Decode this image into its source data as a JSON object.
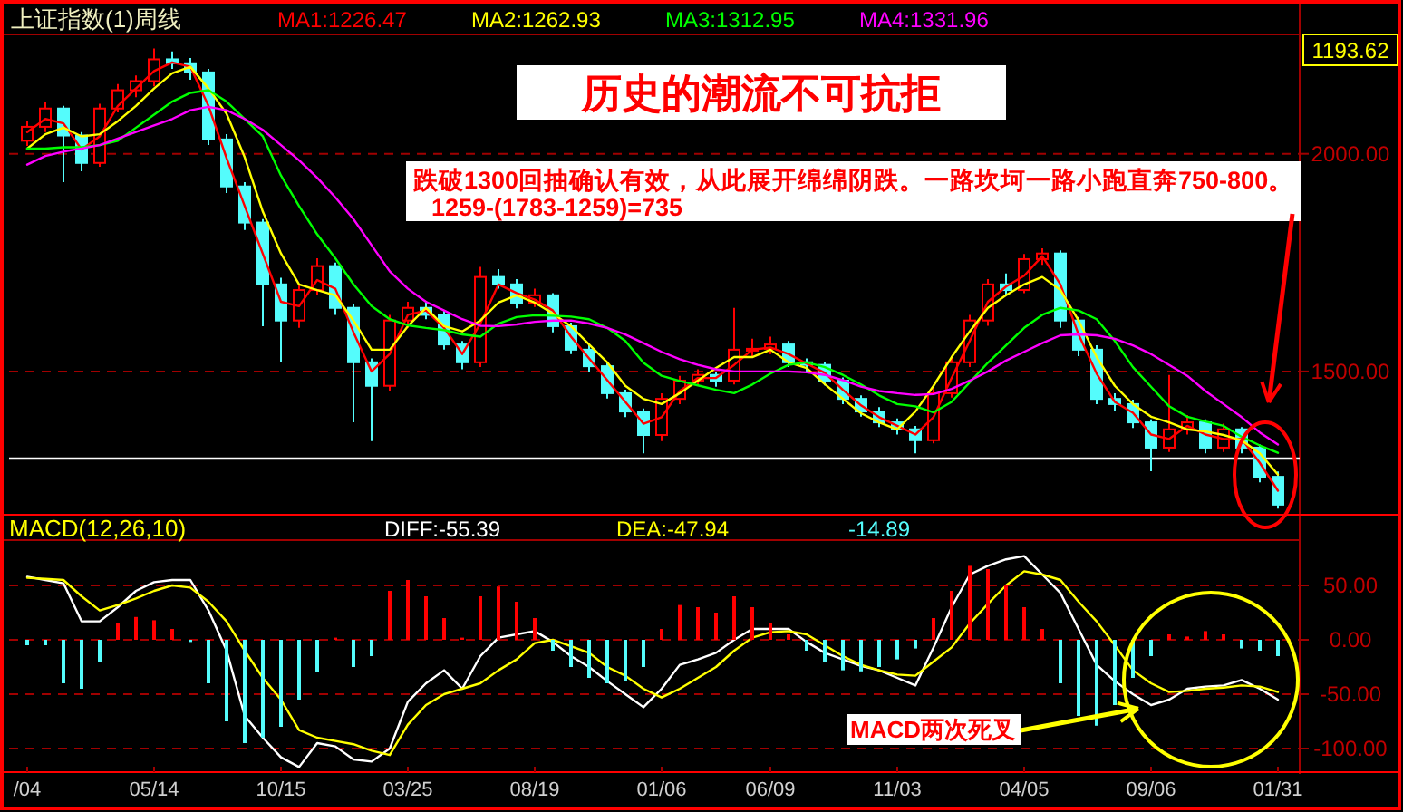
{
  "chart_data": [
    {
      "type": "candlestick",
      "title": "上证指数(1)周线",
      "categories": [
        null,
        null,
        null,
        null,
        null,
        null,
        null,
        null,
        null,
        null,
        null,
        null,
        null,
        null,
        null,
        null,
        null,
        null,
        null,
        null,
        null,
        null,
        null,
        null,
        null,
        null,
        null,
        null,
        null,
        null,
        null,
        null,
        null,
        null,
        null,
        null,
        null,
        null,
        null,
        null,
        null,
        null,
        null,
        null,
        null,
        null,
        null,
        null,
        null,
        null,
        null,
        null,
        null,
        null,
        null,
        null,
        null,
        null,
        null,
        null,
        null,
        null,
        null,
        null,
        null,
        null,
        null,
        null,
        null,
        null
      ],
      "ohlc": [
        [
          2030,
          2075,
          2018,
          2062
        ],
        [
          2062,
          2118,
          2050,
          2104
        ],
        [
          2104,
          2110,
          1935,
          2042
        ],
        [
          2042,
          2050,
          1960,
          1979
        ],
        [
          1979,
          2115,
          1970,
          2104
        ],
        [
          2104,
          2160,
          2095,
          2146
        ],
        [
          2146,
          2180,
          2130,
          2167
        ],
        [
          2167,
          2242,
          2155,
          2217
        ],
        [
          2217,
          2235,
          2195,
          2208
        ],
        [
          2208,
          2220,
          2170,
          2187
        ],
        [
          2187,
          2195,
          2020,
          2033
        ],
        [
          2033,
          2045,
          1910,
          1925
        ],
        [
          1925,
          1935,
          1825,
          1842
        ],
        [
          1842,
          1850,
          1604,
          1700
        ],
        [
          1700,
          1715,
          1521,
          1617
        ],
        [
          1617,
          1700,
          1600,
          1687
        ],
        [
          1687,
          1760,
          1675,
          1742
        ],
        [
          1742,
          1750,
          1630,
          1646
        ],
        [
          1646,
          1655,
          1383,
          1521
        ],
        [
          1521,
          1530,
          1340,
          1467
        ],
        [
          1467,
          1630,
          1455,
          1617
        ],
        [
          1617,
          1660,
          1600,
          1646
        ],
        [
          1646,
          1662,
          1620,
          1630
        ],
        [
          1630,
          1640,
          1550,
          1562
        ],
        [
          1562,
          1570,
          1505,
          1521
        ],
        [
          1521,
          1740,
          1510,
          1717
        ],
        [
          1717,
          1735,
          1690,
          1700
        ],
        [
          1700,
          1712,
          1645,
          1658
        ],
        [
          1658,
          1690,
          1648,
          1675
        ],
        [
          1675,
          1680,
          1590,
          1604
        ],
        [
          1604,
          1612,
          1540,
          1550
        ],
        [
          1550,
          1560,
          1500,
          1512
        ],
        [
          1512,
          1520,
          1438,
          1450
        ],
        [
          1450,
          1458,
          1395,
          1408
        ],
        [
          1408,
          1415,
          1312,
          1354
        ],
        [
          1354,
          1450,
          1340,
          1437
        ],
        [
          1437,
          1490,
          1425,
          1479
        ],
        [
          1479,
          1505,
          1468,
          1492
        ],
        [
          1492,
          1500,
          1465,
          1479
        ],
        [
          1479,
          1646,
          1470,
          1550
        ],
        [
          1550,
          1575,
          1535,
          1552
        ],
        [
          1552,
          1580,
          1540,
          1562
        ],
        [
          1562,
          1570,
          1510,
          1521
        ],
        [
          1521,
          1530,
          1500,
          1515
        ],
        [
          1515,
          1522,
          1468,
          1479
        ],
        [
          1479,
          1486,
          1425,
          1437
        ],
        [
          1437,
          1445,
          1396,
          1408
        ],
        [
          1408,
          1418,
          1372,
          1383
        ],
        [
          1383,
          1392,
          1355,
          1367
        ],
        [
          1367,
          1375,
          1312,
          1342
        ],
        [
          1342,
          1462,
          1335,
          1450
        ],
        [
          1450,
          1535,
          1440,
          1521
        ],
        [
          1521,
          1630,
          1510,
          1617
        ],
        [
          1617,
          1712,
          1605,
          1700
        ],
        [
          1700,
          1725,
          1675,
          1687
        ],
        [
          1687,
          1770,
          1680,
          1758
        ],
        [
          1758,
          1783,
          1745,
          1771
        ],
        [
          1771,
          1778,
          1600,
          1617
        ],
        [
          1617,
          1625,
          1535,
          1550
        ],
        [
          1550,
          1560,
          1425,
          1437
        ],
        [
          1437,
          1450,
          1410,
          1425
        ],
        [
          1425,
          1435,
          1370,
          1383
        ],
        [
          1383,
          1390,
          1271,
          1325
        ],
        [
          1325,
          1492,
          1315,
          1367
        ],
        [
          1367,
          1400,
          1355,
          1383
        ],
        [
          1383,
          1390,
          1312,
          1325
        ],
        [
          1325,
          1380,
          1315,
          1367
        ],
        [
          1367,
          1372,
          1312,
          1325
        ],
        [
          1325,
          1332,
          1245,
          1258
        ],
        [
          1258,
          1270,
          1185,
          1194
        ]
      ],
      "colors": [
        "#ff0000",
        "#ff0000",
        "#54fcfc",
        "#54fcfc",
        "#ff0000",
        "#ff0000",
        "#ff0000",
        "#ff0000",
        "#54fcfc",
        "#54fcfc",
        "#54fcfc",
        "#54fcfc",
        "#54fcfc",
        "#54fcfc",
        "#54fcfc",
        "#ff0000",
        "#ff0000",
        "#54fcfc",
        "#54fcfc",
        "#54fcfc",
        "#ff0000",
        "#ff0000",
        "#54fcfc",
        "#54fcfc",
        "#54fcfc",
        "#ff0000",
        "#54fcfc",
        "#54fcfc",
        "#ff0000",
        "#54fcfc",
        "#54fcfc",
        "#54fcfc",
        "#54fcfc",
        "#54fcfc",
        "#54fcfc",
        "#ff0000",
        "#ff0000",
        "#ff0000",
        "#54fcfc",
        "#ff0000",
        "#ff0000",
        "#ff0000",
        "#54fcfc",
        "#54fcfc",
        "#54fcfc",
        "#54fcfc",
        "#54fcfc",
        "#54fcfc",
        "#54fcfc",
        "#54fcfc",
        "#ff0000",
        "#ff0000",
        "#ff0000",
        "#ff0000",
        "#54fcfc",
        "#ff0000",
        "#ff0000",
        "#54fcfc",
        "#54fcfc",
        "#54fcfc",
        "#54fcfc",
        "#54fcfc",
        "#54fcfc",
        "#ff0000",
        "#ff0000",
        "#54fcfc",
        "#ff0000",
        "#54fcfc",
        "#54fcfc",
        "#54fcfc"
      ],
      "series": [
        {
          "name": "MA1:1226.47",
          "type": "line",
          "color": "#ff0000",
          "values": [
            2050,
            2080,
            2070,
            2010,
            2040,
            2110,
            2150,
            2190,
            2210,
            2200,
            2110,
            1990,
            1880,
            1770,
            1660,
            1650,
            1710,
            1690,
            1590,
            1500,
            1540,
            1630,
            1640,
            1600,
            1540,
            1610,
            1700,
            1680,
            1665,
            1640,
            1580,
            1530,
            1480,
            1430,
            1380,
            1395,
            1455,
            1485,
            1485,
            1515,
            1550,
            1555,
            1540,
            1518,
            1497,
            1458,
            1422,
            1395,
            1375,
            1355,
            1395,
            1485,
            1570,
            1660,
            1695,
            1720,
            1765,
            1700,
            1585,
            1495,
            1430,
            1405,
            1355,
            1345,
            1375,
            1355,
            1345,
            1345,
            1290,
            1226
          ]
        },
        {
          "name": "MA2:1262.93",
          "type": "line",
          "color": "#ffff00",
          "values": [
            2012,
            2045,
            2060,
            2040,
            2045,
            2075,
            2110,
            2150,
            2185,
            2200,
            2150,
            2092,
            1992,
            1867,
            1771,
            1700,
            1687,
            1675,
            1617,
            1550,
            1550,
            1604,
            1646,
            1604,
            1592,
            1617,
            1658,
            1675,
            1658,
            1633,
            1604,
            1562,
            1521,
            1467,
            1437,
            1425,
            1450,
            1479,
            1508,
            1533,
            1533,
            1550,
            1521,
            1508,
            1471,
            1437,
            1404,
            1383,
            1367,
            1408,
            1467,
            1533,
            1592,
            1646,
            1675,
            1700,
            1717,
            1687,
            1617,
            1533,
            1467,
            1425,
            1396,
            1383,
            1367,
            1362,
            1354,
            1342,
            1312,
            1263
          ]
        },
        {
          "name": "MA3:1312.95",
          "type": "line",
          "color": "#00ff00",
          "values": [
            2012,
            2012,
            2015,
            2015,
            2020,
            2030,
            2060,
            2090,
            2120,
            2140,
            2146,
            2120,
            2080,
            2040,
            1950,
            1880,
            1815,
            1760,
            1700,
            1650,
            1620,
            1606,
            1600,
            1595,
            1585,
            1580,
            1610,
            1625,
            1629,
            1628,
            1626,
            1620,
            1600,
            1570,
            1520,
            1490,
            1478,
            1468,
            1458,
            1450,
            1470,
            1495,
            1515,
            1521,
            1510,
            1492,
            1470,
            1445,
            1425,
            1420,
            1406,
            1430,
            1475,
            1520,
            1560,
            1600,
            1630,
            1646,
            1640,
            1620,
            1570,
            1510,
            1465,
            1420,
            1396,
            1385,
            1375,
            1350,
            1330,
            1313
          ]
        },
        {
          "name": "MA4:1331.96",
          "type": "line",
          "color": "#ff00ff",
          "values": [
            1975,
            1995,
            2005,
            2012,
            2020,
            2035,
            2050,
            2065,
            2080,
            2100,
            2108,
            2100,
            2080,
            2055,
            2020,
            1985,
            1945,
            1900,
            1850,
            1790,
            1730,
            1690,
            1660,
            1640,
            1620,
            1605,
            1604,
            1608,
            1614,
            1617,
            1617,
            1610,
            1600,
            1585,
            1565,
            1545,
            1528,
            1515,
            1505,
            1500,
            1500,
            1500,
            1500,
            1498,
            1492,
            1480,
            1465,
            1455,
            1450,
            1446,
            1448,
            1460,
            1479,
            1500,
            1525,
            1545,
            1565,
            1583,
            1585,
            1583,
            1575,
            1560,
            1540,
            1515,
            1490,
            1455,
            1425,
            1395,
            1360,
            1332
          ]
        }
      ],
      "ylim": [
        1175,
        2270
      ],
      "yticks": [
        {
          "value": 1500,
          "label": "1500.00"
        },
        {
          "value": 2000,
          "label": "2000.00"
        }
      ],
      "grid": "y",
      "tick_labels": "y",
      "legend": "top",
      "ref_lines": [
        {
          "axis": "y",
          "value": 1300,
          "color": "#ffffff"
        }
      ],
      "annotations": [
        "历史的潮流不可抗拒",
        "跌破1300回抽确认有效，从此展开绵绵阴跌。一路坎坷一路小跑直奔750-800。",
        "1259-(1783-1259)=735",
        "1193.62"
      ]
    },
    {
      "type": "bar",
      "title": "MACD(12,26,10)",
      "categories": [
        "/04",
        null,
        null,
        null,
        null,
        null,
        null,
        "05/14",
        null,
        null,
        null,
        null,
        null,
        null,
        "10/15",
        null,
        null,
        null,
        null,
        null,
        null,
        "03/25",
        null,
        null,
        null,
        null,
        null,
        null,
        "08/19",
        null,
        null,
        null,
        null,
        null,
        null,
        "01/06",
        null,
        null,
        null,
        null,
        null,
        "06/09",
        null,
        null,
        null,
        null,
        null,
        null,
        "11/03",
        null,
        null,
        null,
        null,
        null,
        null,
        "04/05",
        null,
        null,
        null,
        null,
        null,
        null,
        "09/06",
        null,
        null,
        null,
        null,
        null,
        null,
        "01/31"
      ],
      "series": [
        {
          "name": "DIFF:-55.39",
          "type": "line",
          "color": "#ffffff",
          "values": [
            58,
            55,
            52,
            17,
            17,
            30,
            45,
            53,
            55,
            55,
            27,
            -10,
            -70,
            -90,
            -108,
            -117,
            -95,
            -98,
            -110,
            -112,
            -100,
            -57,
            -40,
            -28,
            -45,
            -15,
            2,
            5,
            8,
            -2,
            -15,
            -25,
            -38,
            -50,
            -62,
            -45,
            -23,
            -18,
            -12,
            0,
            10,
            10,
            10,
            -2,
            -12,
            -18,
            -24,
            -28,
            -35,
            -42,
            -7,
            30,
            60,
            68,
            74,
            77,
            60,
            43,
            10,
            -23,
            -38,
            -50,
            -60,
            -55,
            -45,
            -43,
            -42,
            -37,
            -45,
            -55
          ]
        },
        {
          "name": "DEA:-47.94",
          "type": "line",
          "color": "#ffff00",
          "values": [
            57,
            56,
            55,
            40,
            27,
            32,
            38,
            45,
            50,
            48,
            35,
            17,
            -10,
            -35,
            -55,
            -83,
            -90,
            -93,
            -96,
            -102,
            -106,
            -78,
            -60,
            -50,
            -45,
            -40,
            -28,
            -18,
            -3,
            0,
            -6,
            -12,
            -25,
            -33,
            -45,
            -53,
            -45,
            -35,
            -25,
            -10,
            2,
            7,
            8,
            5,
            -5,
            -15,
            -23,
            -28,
            -32,
            -33,
            -20,
            -7,
            15,
            33,
            50,
            63,
            60,
            55,
            35,
            17,
            -5,
            -28,
            -40,
            -48,
            -47,
            -45,
            -44,
            -42,
            -43,
            -48
          ]
        },
        {
          "name": "-14.89",
          "color": "#54fcfc",
          "values": [
            -5,
            -5,
            -40,
            -45,
            -20,
            15,
            21,
            18,
            10,
            -2,
            -40,
            -75,
            -95,
            -90,
            -80,
            -55,
            -30,
            2,
            -25,
            -15,
            45,
            55,
            40,
            20,
            2,
            40,
            49,
            35,
            20,
            -10,
            -25,
            -35,
            -40,
            -38,
            -25,
            10,
            32,
            30,
            25,
            40,
            30,
            15,
            5,
            -10,
            -20,
            -28,
            -29,
            -25,
            -18,
            -8,
            20,
            45,
            68,
            65,
            50,
            30,
            10,
            -40,
            -70,
            -79,
            -60,
            -35,
            -15,
            5,
            3,
            8,
            5,
            -8,
            -10,
            -15
          ],
          "colors": [
            "#54fcfc",
            "#54fcfc",
            "#54fcfc",
            "#54fcfc",
            "#54fcfc",
            "#ff0000",
            "#ff0000",
            "#ff0000",
            "#ff0000",
            "#54fcfc",
            "#54fcfc",
            "#54fcfc",
            "#54fcfc",
            "#54fcfc",
            "#54fcfc",
            "#54fcfc",
            "#54fcfc",
            "#ff0000",
            "#54fcfc",
            "#54fcfc",
            "#ff0000",
            "#ff0000",
            "#ff0000",
            "#ff0000",
            "#ff0000",
            "#ff0000",
            "#ff0000",
            "#ff0000",
            "#ff0000",
            "#54fcfc",
            "#54fcfc",
            "#54fcfc",
            "#54fcfc",
            "#54fcfc",
            "#54fcfc",
            "#ff0000",
            "#ff0000",
            "#ff0000",
            "#ff0000",
            "#ff0000",
            "#ff0000",
            "#ff0000",
            "#ff0000",
            "#54fcfc",
            "#54fcfc",
            "#54fcfc",
            "#54fcfc",
            "#54fcfc",
            "#54fcfc",
            "#54fcfc",
            "#ff0000",
            "#ff0000",
            "#ff0000",
            "#ff0000",
            "#ff0000",
            "#ff0000",
            "#ff0000",
            "#54fcfc",
            "#54fcfc",
            "#54fcfc",
            "#54fcfc",
            "#54fcfc",
            "#54fcfc",
            "#ff0000",
            "#ff0000",
            "#ff0000",
            "#ff0000",
            "#54fcfc",
            "#54fcfc",
            "#54fcfc"
          ]
        }
      ],
      "ylim": [
        -120,
        90
      ],
      "yticks": [
        {
          "value": 50,
          "label": "50.00"
        },
        {
          "value": 0,
          "label": "0.00"
        },
        {
          "value": -50,
          "label": "-50.00"
        },
        {
          "value": -100,
          "label": "-100.00"
        }
      ],
      "grid": "y",
      "legend": "top",
      "annotations": [
        "MACD两次死叉"
      ]
    }
  ]
}
